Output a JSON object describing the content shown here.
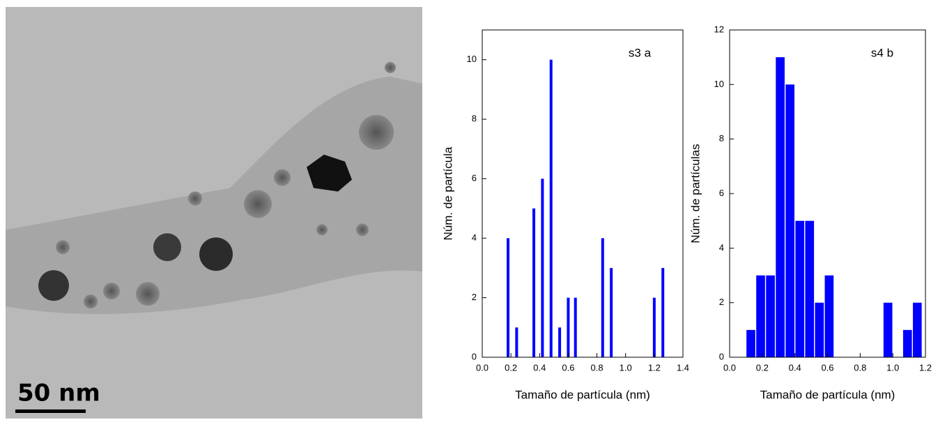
{
  "image": {
    "scale_label": "50 nm"
  },
  "chart_data": [
    {
      "type": "bar",
      "annotation": "s3 a",
      "x_label": "Tamaño de partícula (nm)",
      "y_label": "Núm. de partícula",
      "x": [
        0.18,
        0.24,
        0.36,
        0.42,
        0.48,
        0.54,
        0.6,
        0.65,
        0.84,
        0.9,
        1.2,
        1.26
      ],
      "values": [
        4,
        1,
        5,
        6,
        10,
        1,
        2,
        2,
        4,
        3,
        2,
        3
      ],
      "color": "#0000ff",
      "xlim": [
        0,
        1.4
      ],
      "xticks": [
        {
          "value": 0,
          "label": "0.0"
        },
        0.2,
        0.4,
        0.6,
        0.8,
        {
          "value": 1,
          "label": "1.0"
        },
        1.2,
        1.4
      ],
      "ylim": [
        0,
        11
      ],
      "yticks": [
        0,
        2,
        4,
        6,
        8,
        10
      ]
    },
    {
      "type": "histogram",
      "annotation": "s4 b",
      "x_label": "Tamaño de partícula (nm)",
      "y_label": "Núm. de partículas",
      "bins": [
        0.1,
        0.16,
        0.22,
        0.28,
        0.34,
        0.4,
        0.46,
        0.52,
        0.58,
        0.64,
        0.7,
        0.76,
        0.82,
        0.88,
        0.94,
        1.0,
        1.06,
        1.12,
        1.18
      ],
      "values": [
        1,
        3,
        3,
        11,
        10,
        5,
        5,
        2,
        3,
        0,
        0,
        0,
        0,
        0,
        2,
        0,
        1,
        2
      ],
      "color": "#0000ff",
      "xlim": [
        0,
        1.2
      ],
      "xticks": [
        {
          "value": 0,
          "label": "0.0"
        },
        0.2,
        0.4,
        0.6,
        0.8,
        {
          "value": 1,
          "label": "1.0"
        },
        1.2
      ],
      "ylim": [
        0,
        12
      ],
      "yticks": [
        0,
        2,
        4,
        6,
        8,
        10,
        12
      ]
    }
  ]
}
